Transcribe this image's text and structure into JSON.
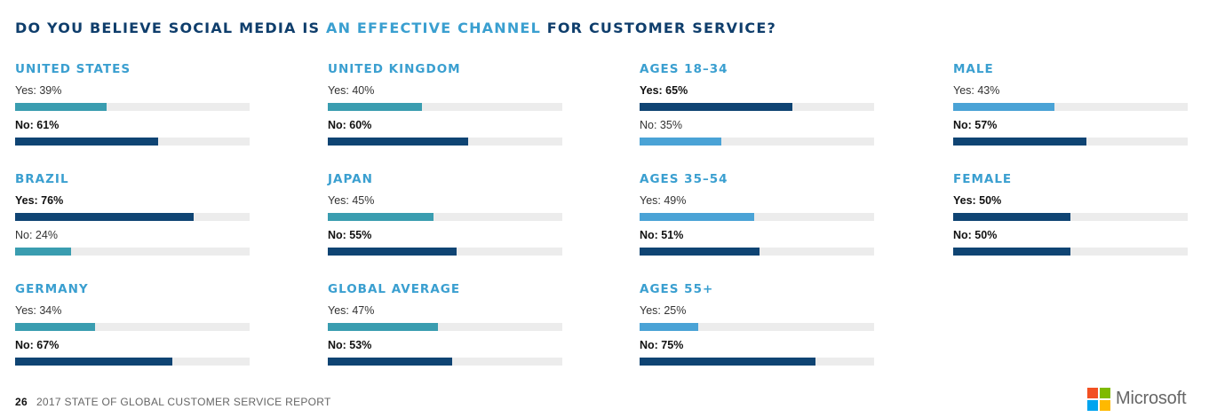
{
  "title": {
    "part1": "DO YOU BELIEVE SOCIAL MEDIA IS ",
    "highlight": "AN EFFECTIVE CHANNEL",
    "part2": " FOR CUSTOMER SERVICE?"
  },
  "colors": {
    "title_dark": "#0f3e6c",
    "highlight": "#3a9fd0",
    "country_secondary": "#3a9db0",
    "age_secondary": "#4aa3d6",
    "majority": "#0f4473",
    "track": "#ececec"
  },
  "chart_data": {
    "type": "bar",
    "title": "DO YOU BELIEVE SOCIAL MEDIA IS AN EFFECTIVE CHANNEL FOR CUSTOMER SERVICE?",
    "xlim": [
      0,
      100
    ],
    "groups": [
      {
        "name": "UNITED STATES",
        "kind": "country",
        "bars": [
          {
            "label": "Yes: 39%",
            "value": 39,
            "bold": false
          },
          {
            "label": "No: 61%",
            "value": 61,
            "bold": true
          }
        ]
      },
      {
        "name": "BRAZIL",
        "kind": "country",
        "bars": [
          {
            "label": "Yes: 76%",
            "value": 76,
            "bold": true
          },
          {
            "label": "No: 24%",
            "value": 24,
            "bold": false
          }
        ]
      },
      {
        "name": "GERMANY",
        "kind": "country",
        "bars": [
          {
            "label": "Yes: 34%",
            "value": 34,
            "bold": false
          },
          {
            "label": "No: 67%",
            "value": 67,
            "bold": true
          }
        ]
      },
      {
        "name": "UNITED KINGDOM",
        "kind": "country",
        "bars": [
          {
            "label": "Yes: 40%",
            "value": 40,
            "bold": false
          },
          {
            "label": "No: 60%",
            "value": 60,
            "bold": true
          }
        ]
      },
      {
        "name": "JAPAN",
        "kind": "country",
        "bars": [
          {
            "label": "Yes: 45%",
            "value": 45,
            "bold": false
          },
          {
            "label": "No: 55%",
            "value": 55,
            "bold": true
          }
        ]
      },
      {
        "name": "GLOBAL AVERAGE",
        "kind": "country",
        "bars": [
          {
            "label": "Yes: 47%",
            "value": 47,
            "bold": false
          },
          {
            "label": "No: 53%",
            "value": 53,
            "bold": true
          }
        ]
      },
      {
        "name": "AGES 18–34",
        "kind": "age",
        "bars": [
          {
            "label": "Yes: 65%",
            "value": 65,
            "bold": true
          },
          {
            "label": "No: 35%",
            "value": 35,
            "bold": false
          }
        ]
      },
      {
        "name": "AGES 35–54",
        "kind": "age",
        "bars": [
          {
            "label": "Yes: 49%",
            "value": 49,
            "bold": false
          },
          {
            "label": "No: 51%",
            "value": 51,
            "bold": true
          }
        ]
      },
      {
        "name": "AGES 55+",
        "kind": "age",
        "bars": [
          {
            "label": "Yes: 25%",
            "value": 25,
            "bold": false
          },
          {
            "label": "No: 75%",
            "value": 75,
            "bold": true
          }
        ]
      },
      {
        "name": "MALE",
        "kind": "age",
        "bars": [
          {
            "label": "Yes: 43%",
            "value": 43,
            "bold": false
          },
          {
            "label": "No: 57%",
            "value": 57,
            "bold": true
          }
        ]
      },
      {
        "name": "FEMALE",
        "kind": "age",
        "bars": [
          {
            "label": "Yes: 50%",
            "value": 50,
            "bold": true
          },
          {
            "label": "No: 50%",
            "value": 50,
            "bold": true
          }
        ]
      }
    ]
  },
  "footer": {
    "page": "26",
    "report": "2017 STATE OF GLOBAL CUSTOMER SERVICE REPORT"
  },
  "logo": {
    "wordmark": "Microsoft",
    "colors": [
      "#f25022",
      "#7fba00",
      "#00a4ef",
      "#ffb900"
    ]
  }
}
